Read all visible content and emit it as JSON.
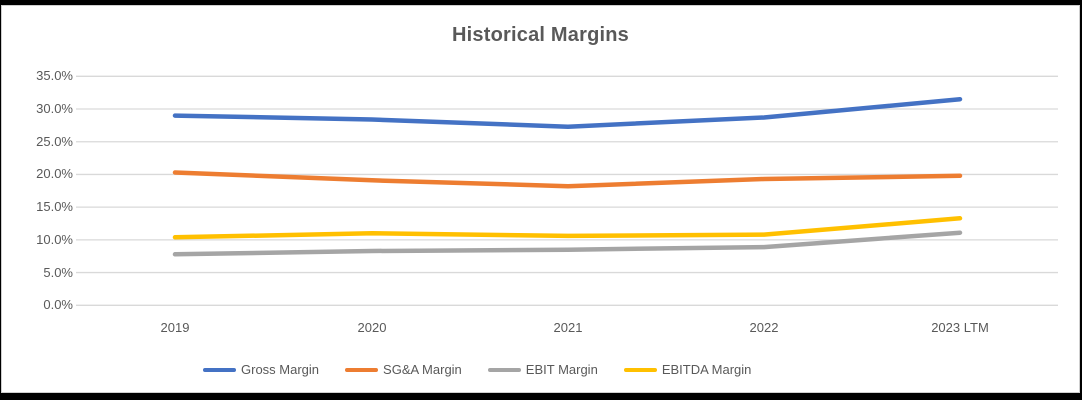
{
  "page": {
    "background": "#000000",
    "panel_background": "#ffffff",
    "panel_border": "#cfcfcf"
  },
  "chart_data": {
    "type": "line",
    "title": "Historical Margins",
    "categories": [
      "2019",
      "2020",
      "2021",
      "2022",
      "2023 LTM"
    ],
    "series": [
      {
        "name": "Gross Margin",
        "color": "#4472C4",
        "values": [
          29.0,
          28.4,
          27.3,
          28.7,
          31.5
        ]
      },
      {
        "name": "SG&A Margin",
        "color": "#ED7D31",
        "values": [
          20.3,
          19.1,
          18.2,
          19.3,
          19.8
        ]
      },
      {
        "name": "EBIT Margin",
        "color": "#A5A5A5",
        "values": [
          7.8,
          8.3,
          8.5,
          8.9,
          11.1
        ]
      },
      {
        "name": "EBITDA Margin",
        "color": "#FFC000",
        "values": [
          10.4,
          11.0,
          10.6,
          10.8,
          13.3
        ]
      }
    ],
    "y_axis": {
      "min": 0,
      "max": 35,
      "step": 5,
      "tick_labels": [
        "0.0%",
        "5.0%",
        "10.0%",
        "15.0%",
        "20.0%",
        "25.0%",
        "30.0%",
        "35.0%"
      ]
    },
    "x_axis": {
      "tick_labels": [
        "2019",
        "2020",
        "2021",
        "2022",
        "2023 LTM"
      ]
    },
    "grid": true,
    "gridline_color": "#D9D9D9",
    "text_color": "#595959",
    "legend_position": "bottom",
    "legend_entries": [
      "Gross Margin",
      "SG&A Margin",
      "EBIT Margin",
      "EBITDA Margin"
    ]
  }
}
